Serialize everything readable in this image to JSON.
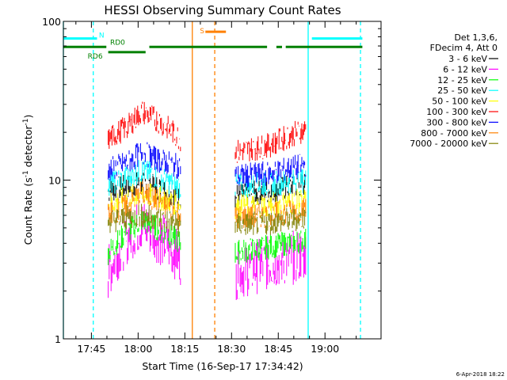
{
  "chart_data": {
    "type": "line",
    "title": "HESSI Observing Summary Count Rates",
    "xlabel": "Start Time (16-Sep-17 17:34:42)",
    "ylabel_main": "Count Rate (s",
    "ylabel_sup1": "-1",
    "ylabel_mid": " detector",
    "ylabel_sup2": "-1",
    "ylabel_end": ")",
    "y_scale": "log",
    "ylim": [
      1,
      100
    ],
    "xlim_minutes": [
      17.6,
      19.3
    ],
    "x_ticks": [
      {
        "label": "17:45",
        "value": 17.75
      },
      {
        "label": "18:00",
        "value": 18.0
      },
      {
        "label": "18:15",
        "value": 18.25
      },
      {
        "label": "18:30",
        "value": 18.5
      },
      {
        "label": "18:45",
        "value": 18.75
      },
      {
        "label": "19:00",
        "value": 19.0
      }
    ],
    "y_ticks": [
      {
        "label": "1",
        "value": 1
      },
      {
        "label": "10",
        "value": 10
      },
      {
        "label": "100",
        "value": 100
      }
    ],
    "legend_header": [
      "Det 1,3,6,",
      "FDecim 4, Att 0"
    ],
    "legend_placement": "right",
    "series": [
      {
        "name": "3 - 6 keV",
        "color": "#000000",
        "seg1": [
          [
            17.84,
            8.5
          ],
          [
            18.0,
            9.5
          ],
          [
            18.1,
            9.0
          ],
          [
            18.23,
            7.5
          ]
        ],
        "seg2": [
          [
            18.52,
            8
          ],
          [
            18.7,
            8.5
          ],
          [
            18.9,
            9.5
          ]
        ]
      },
      {
        "name": "6 - 12 keV",
        "color": "#ff00ff",
        "seg1": [
          [
            17.84,
            2.6
          ],
          [
            17.95,
            4.5
          ],
          [
            18.02,
            5.3
          ],
          [
            18.1,
            4.5
          ],
          [
            18.23,
            3.2
          ]
        ],
        "seg2": [
          [
            18.52,
            2.6
          ],
          [
            18.7,
            3.0
          ],
          [
            18.9,
            3.4
          ]
        ]
      },
      {
        "name": "12 - 25 keV",
        "color": "#00ff00",
        "seg1": [
          [
            17.84,
            3.5
          ],
          [
            17.95,
            4.8
          ],
          [
            18.02,
            5.6
          ],
          [
            18.1,
            5.0
          ],
          [
            18.23,
            4.0
          ]
        ],
        "seg2": [
          [
            18.52,
            3.5
          ],
          [
            18.7,
            3.8
          ],
          [
            18.9,
            4.2
          ]
        ]
      },
      {
        "name": "25 - 50 keV",
        "color": "#00ffff",
        "seg1": [
          [
            17.84,
            9.5
          ],
          [
            17.95,
            10.5
          ],
          [
            18.02,
            11.5
          ],
          [
            18.1,
            10.5
          ],
          [
            18.23,
            9.0
          ]
        ],
        "seg2": [
          [
            18.52,
            9.2
          ],
          [
            18.7,
            9.5
          ],
          [
            18.9,
            10.0
          ]
        ]
      },
      {
        "name": "50 - 100 keV",
        "color": "#ffff00",
        "seg1": [
          [
            17.84,
            7.0
          ],
          [
            17.95,
            7.8
          ],
          [
            18.02,
            8.2
          ],
          [
            18.1,
            7.8
          ],
          [
            18.23,
            7.0
          ]
        ],
        "seg2": [
          [
            18.52,
            6.8
          ],
          [
            18.7,
            7.0
          ],
          [
            18.9,
            7.4
          ]
        ]
      },
      {
        "name": "100 - 300 keV",
        "color": "#ff0000",
        "seg1": [
          [
            17.84,
            18
          ],
          [
            17.95,
            22
          ],
          [
            18.02,
            27
          ],
          [
            18.1,
            24
          ],
          [
            18.23,
            18
          ]
        ],
        "seg2": [
          [
            18.52,
            15
          ],
          [
            18.7,
            16.5
          ],
          [
            18.9,
            21
          ]
        ]
      },
      {
        "name": "300 - 800 keV",
        "color": "#0000ff",
        "seg1": [
          [
            17.84,
            11.5
          ],
          [
            17.95,
            13
          ],
          [
            18.02,
            15
          ],
          [
            18.1,
            13.5
          ],
          [
            18.23,
            12
          ]
        ],
        "seg2": [
          [
            18.52,
            10.5
          ],
          [
            18.7,
            11
          ],
          [
            18.9,
            12.5
          ]
        ]
      },
      {
        "name": "800 - 7000 keV",
        "color": "#ff8000",
        "seg1": [
          [
            17.84,
            6.0
          ],
          [
            17.95,
            7.0
          ],
          [
            18.02,
            8.3
          ],
          [
            18.1,
            7.5
          ],
          [
            18.23,
            6.0
          ]
        ],
        "seg2": [
          [
            18.52,
            5.8
          ],
          [
            18.7,
            6.0
          ],
          [
            18.9,
            6.6
          ]
        ]
      },
      {
        "name": "7000 - 20000 keV",
        "color": "#808000",
        "seg1": [
          [
            17.84,
            5.5
          ],
          [
            18.0,
            6.0
          ],
          [
            18.1,
            5.8
          ],
          [
            18.23,
            5.2
          ]
        ],
        "seg2": [
          [
            18.52,
            5.2
          ],
          [
            18.7,
            5.4
          ],
          [
            18.9,
            5.8
          ]
        ]
      }
    ],
    "flags": [
      {
        "label": "N",
        "color": "#00ffff",
        "y": 78,
        "ranges": [
          [
            17.6,
            17.78
          ],
          [
            18.93,
            19.2
          ]
        ]
      },
      {
        "label": "RD0",
        "color": "#008000",
        "y": 69,
        "ranges": [
          [
            17.6,
            17.83
          ],
          [
            18.06,
            18.69
          ],
          [
            18.74,
            18.77
          ],
          [
            18.79,
            19.2
          ]
        ]
      },
      {
        "label": "RD6",
        "color": "#008000",
        "y": 64,
        "ranges": [
          [
            17.84,
            18.04
          ]
        ]
      },
      {
        "label": "S",
        "color": "#ff8000",
        "y": 86,
        "ranges": [
          [
            18.36,
            18.47
          ]
        ]
      }
    ],
    "vlines": [
      {
        "value": 17.6,
        "color": "#00ffff",
        "style": "solid"
      },
      {
        "value": 17.76,
        "color": "#00ffff",
        "style": "dashed"
      },
      {
        "value": 18.29,
        "color": "#ff8000",
        "style": "solid"
      },
      {
        "value": 18.41,
        "color": "#ff8000",
        "style": "dashed"
      },
      {
        "value": 18.91,
        "color": "#00ffff",
        "style": "solid"
      },
      {
        "value": 19.19,
        "color": "#00ffff",
        "style": "dashed"
      }
    ],
    "timestamp": "6-Apr-2018 18:22"
  }
}
